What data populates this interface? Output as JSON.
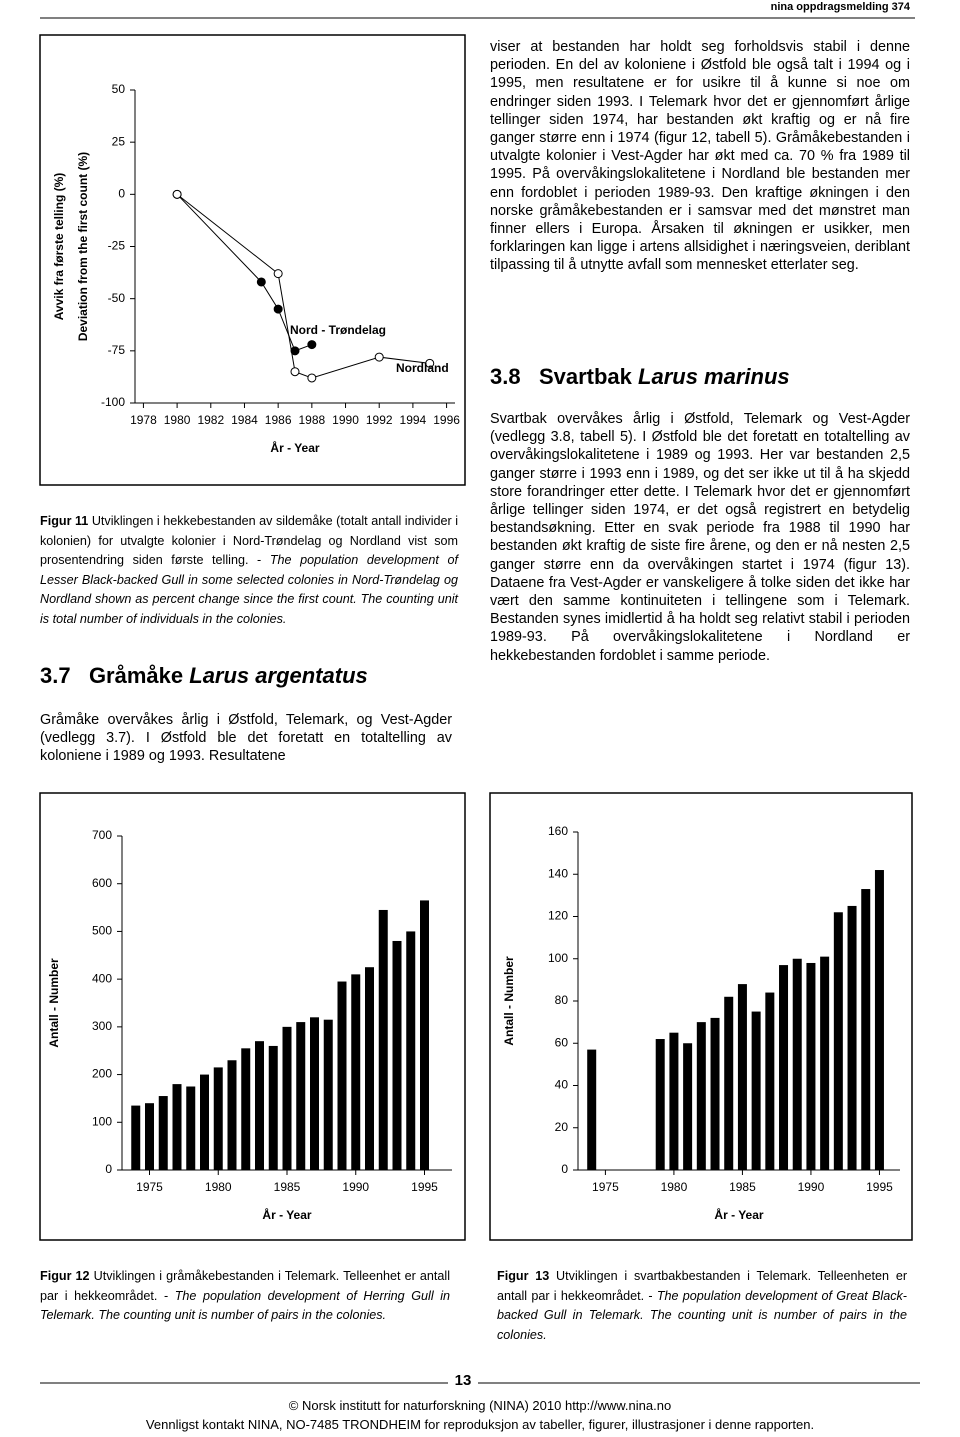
{
  "header": "nina oppdragsmelding 374",
  "right_intro": "viser at bestanden har holdt seg forholdsvis stabil i denne perioden. En del av koloniene i Østfold ble også talt i 1994 og i 1995, men resultatene er for usikre til å kunne si noe om endringer siden 1993. I Telemark hvor det er gjennomført årlige tellinger siden 1974, har bestanden økt kraftig og er nå fire ganger større enn i 1974 (figur 12, tabell 5). Gråmåkebestanden i utvalgte kolonier i Vest-Agder har økt med ca. 70 % fra 1989 til 1995. På overvåkingslokalitetene i Nordland ble bestanden mer enn fordoblet i perioden 1989-93. Den kraftige økningen i den norske gråmåkebestanden er i samsvar med det mønstret man finner ellers i Europa. Årsaken til økningen er usikker, men forklaringen kan ligge i artens allsidighet i næringsveien, deriblant tilpassing til å utnytte avfall som mennesket etterlater seg.",
  "section_37": {
    "number": "3.7",
    "name": "Gråmåke",
    "latin": "Larus argentatus",
    "text": "Gråmåke overvåkes årlig i Østfold, Telemark, og Vest-Agder (vedlegg 3.7). I Østfold ble det foretatt en totaltelling av koloniene i 1989 og 1993. Resultatene"
  },
  "section_38": {
    "number": "3.8",
    "name": "Svartbak",
    "latin": "Larus marinus",
    "text": "Svartbak overvåkes årlig i Østfold, Telemark og Vest-Agder (vedlegg 3.8, tabell 5). I Østfold ble det foretatt en totaltelling av overvåkingslokalitetene i 1989 og 1993. Her var bestanden 2,5 ganger større i 1993 enn i 1989, og det ser ikke ut til å ha skjedd store forandringer etter dette. I Telemark hvor det er gjennomført årlige tellinger siden 1974, er det også registrert en betydelig bestandsøkning. Etter en svak periode fra 1988 til 1990 har bestanden økt kraftig de siste fire årene, og den er nå nesten 2,5 ganger større enn da overvåkingen startet i 1974 (figur 13). Dataene fra Vest-Agder er vanskeligere å tolke siden det ikke har vært den samme kontinuiteten i tellingene som i Telemark. Bestanden synes imidlertid å ha holdt seg relativt stabil i perioden 1989-93. På overvåkingslokalitetene i Nordland er hekkebestanden fordoblet i samme periode."
  },
  "captions": [
    {
      "label": "Figur 11",
      "text": "Utviklingen i hekkebestanden av sildemåke (totalt antall individer i kolonien) for utvalgte kolonier i Nord-Trøndelag og Nordland vist som prosentendring siden første telling. -",
      "english": "The population development of Lesser Black-backed Gull in some selected colonies in Nord-Trøndelag og Nordland shown as percent change since the first count. The counting unit is total number of individuals in the colonies."
    },
    {
      "label": "Figur 12",
      "text": "Utviklingen i gråmåkebestanden i Telemark. Telleenhet er antall par i hekkeområdet. -",
      "english": "The population development of Herring Gull in Telemark. The counting unit is number of pairs in the colonies."
    },
    {
      "label": "Figur 13",
      "text": "Utviklingen i svartbakbestanden i Telemark. Telleenheten er antall par i hekkeområdet. -",
      "english": "The population development of Great Black-backed Gull in Telemark. The counting unit is number of pairs in the colonies."
    }
  ],
  "chart_data": [
    {
      "type": "line",
      "ylabels": [
        "Avvik fra første telling (%)",
        "Deviation from the first count (%)"
      ],
      "xlabel": "År - Year",
      "xlim": [
        1977.5,
        1996.5
      ],
      "xticks": [
        1978,
        1980,
        1982,
        1984,
        1986,
        1988,
        1990,
        1992,
        1994,
        1996
      ],
      "ylim": [
        -100,
        50
      ],
      "yticks": [
        50,
        25,
        0,
        -25,
        -50,
        -75,
        -100
      ],
      "color": "#000000",
      "series": [
        {
          "name": "Nord - Trøndelag",
          "marker": "filled",
          "x": [
            1980,
            1985,
            1986,
            1987,
            1988
          ],
          "values": [
            0,
            -42,
            -55,
            -75,
            -72
          ]
        },
        {
          "name": "Nordland",
          "marker": "open",
          "x": [
            1980,
            1986,
            1987,
            1988,
            1992,
            1995
          ],
          "values": [
            0,
            -38,
            -85,
            -88,
            -78,
            -81
          ]
        }
      ]
    },
    {
      "type": "bar",
      "ylabel": "Antall - Number",
      "xlabel": "År - Year",
      "color": "#000000",
      "xlim": [
        1973,
        1997
      ],
      "xticks": [
        1975,
        1980,
        1985,
        1990,
        1995
      ],
      "ylim": [
        0,
        700
      ],
      "yticks": [
        0,
        100,
        200,
        300,
        400,
        500,
        600,
        700
      ],
      "x": [
        1974,
        1975,
        1976,
        1977,
        1978,
        1979,
        1980,
        1981,
        1982,
        1983,
        1984,
        1985,
        1986,
        1987,
        1988,
        1989,
        1990,
        1991,
        1992,
        1993,
        1994,
        1995
      ],
      "values": [
        135,
        140,
        155,
        180,
        175,
        200,
        215,
        230,
        255,
        270,
        260,
        300,
        310,
        320,
        315,
        395,
        410,
        425,
        545,
        480,
        500,
        565
      ]
    },
    {
      "type": "bar",
      "ylabel": "Antall - Number",
      "xlabel": "År - Year",
      "color": "#000000",
      "xlim": [
        1973,
        1996.5
      ],
      "xticks": [
        1975,
        1980,
        1985,
        1990,
        1995
      ],
      "ylim": [
        0,
        160
      ],
      "yticks": [
        0,
        20,
        40,
        60,
        80,
        100,
        120,
        140,
        160
      ],
      "x": [
        1974,
        1975,
        1976,
        1977,
        1978,
        1979,
        1980,
        1981,
        1982,
        1983,
        1984,
        1985,
        1986,
        1987,
        1988,
        1989,
        1990,
        1991,
        1992,
        1993,
        1994,
        1995
      ],
      "values": [
        57,
        null,
        null,
        null,
        null,
        62,
        65,
        60,
        70,
        72,
        82,
        88,
        75,
        84,
        97,
        100,
        98,
        101,
        122,
        125,
        133,
        142
      ]
    }
  ],
  "footer": {
    "page": "13",
    "copyright": "© Norsk institutt for naturforskning (NINA) 2010 http://www.nina.no",
    "contact": "Vennligst kontakt NINA, NO-7485 TRONDHEIM for reproduksjon av tabeller, figurer, illustrasjoner i denne rapporten."
  }
}
